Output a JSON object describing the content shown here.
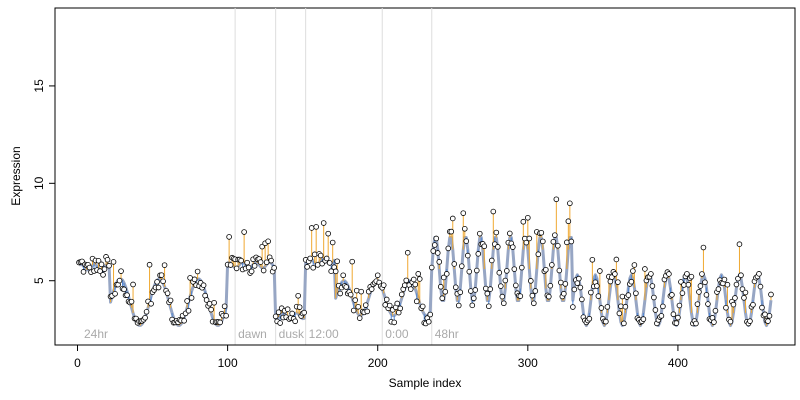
{
  "chart_data": {
    "type": "line",
    "xlabel": "Sample index",
    "ylabel": "Expression",
    "xlim": [
      -15,
      478
    ],
    "ylim": [
      1.7,
      19
    ],
    "x_ticks": [
      0,
      100,
      200,
      300,
      400
    ],
    "y_ticks": [
      5,
      10,
      15
    ],
    "grid": false,
    "phase_markers": [
      {
        "x": 105,
        "label": "dawn"
      },
      {
        "x": 132,
        "label": "dusk"
      },
      {
        "x": 152,
        "label": "12:00"
      },
      {
        "x": 203,
        "label": "0:00"
      },
      {
        "x": 236,
        "label": "48hr"
      }
    ],
    "start_label": "24hr",
    "colors": {
      "fit_line": "#97a6c4",
      "above_residual": "#f0a830",
      "below_residual": "#4f86d4",
      "point_stroke": "#000000",
      "point_fill": "#ffffff",
      "marker_line": "#dddddd",
      "marker_text": "#aaaaaa"
    },
    "segments": [
      {
        "x0": 0,
        "x1": 22,
        "shape": "flat",
        "base": 5.7,
        "amp": 0.8
      },
      {
        "x0": 22,
        "x1": 100,
        "shape": "wave",
        "base": 3.9,
        "amp": 1.2,
        "period": 26
      },
      {
        "x0": 100,
        "x1": 132,
        "shape": "flat",
        "base": 5.8,
        "amp": 0.5
      },
      {
        "x0": 132,
        "x1": 152,
        "shape": "flat",
        "base": 3.2,
        "amp": 0.3
      },
      {
        "x0": 152,
        "x1": 172,
        "shape": "flat",
        "base": 6.0,
        "amp": 0.4
      },
      {
        "x0": 172,
        "x1": 236,
        "shape": "wave",
        "base": 4.1,
        "amp": 0.9,
        "period": 22
      },
      {
        "x0": 236,
        "x1": 330,
        "shape": "wave",
        "base": 5.6,
        "amp": 1.7,
        "period": 10
      },
      {
        "x0": 330,
        "x1": 462,
        "shape": "wave",
        "base": 4.0,
        "amp": 1.3,
        "period": 12
      }
    ],
    "n_points": 462
  }
}
